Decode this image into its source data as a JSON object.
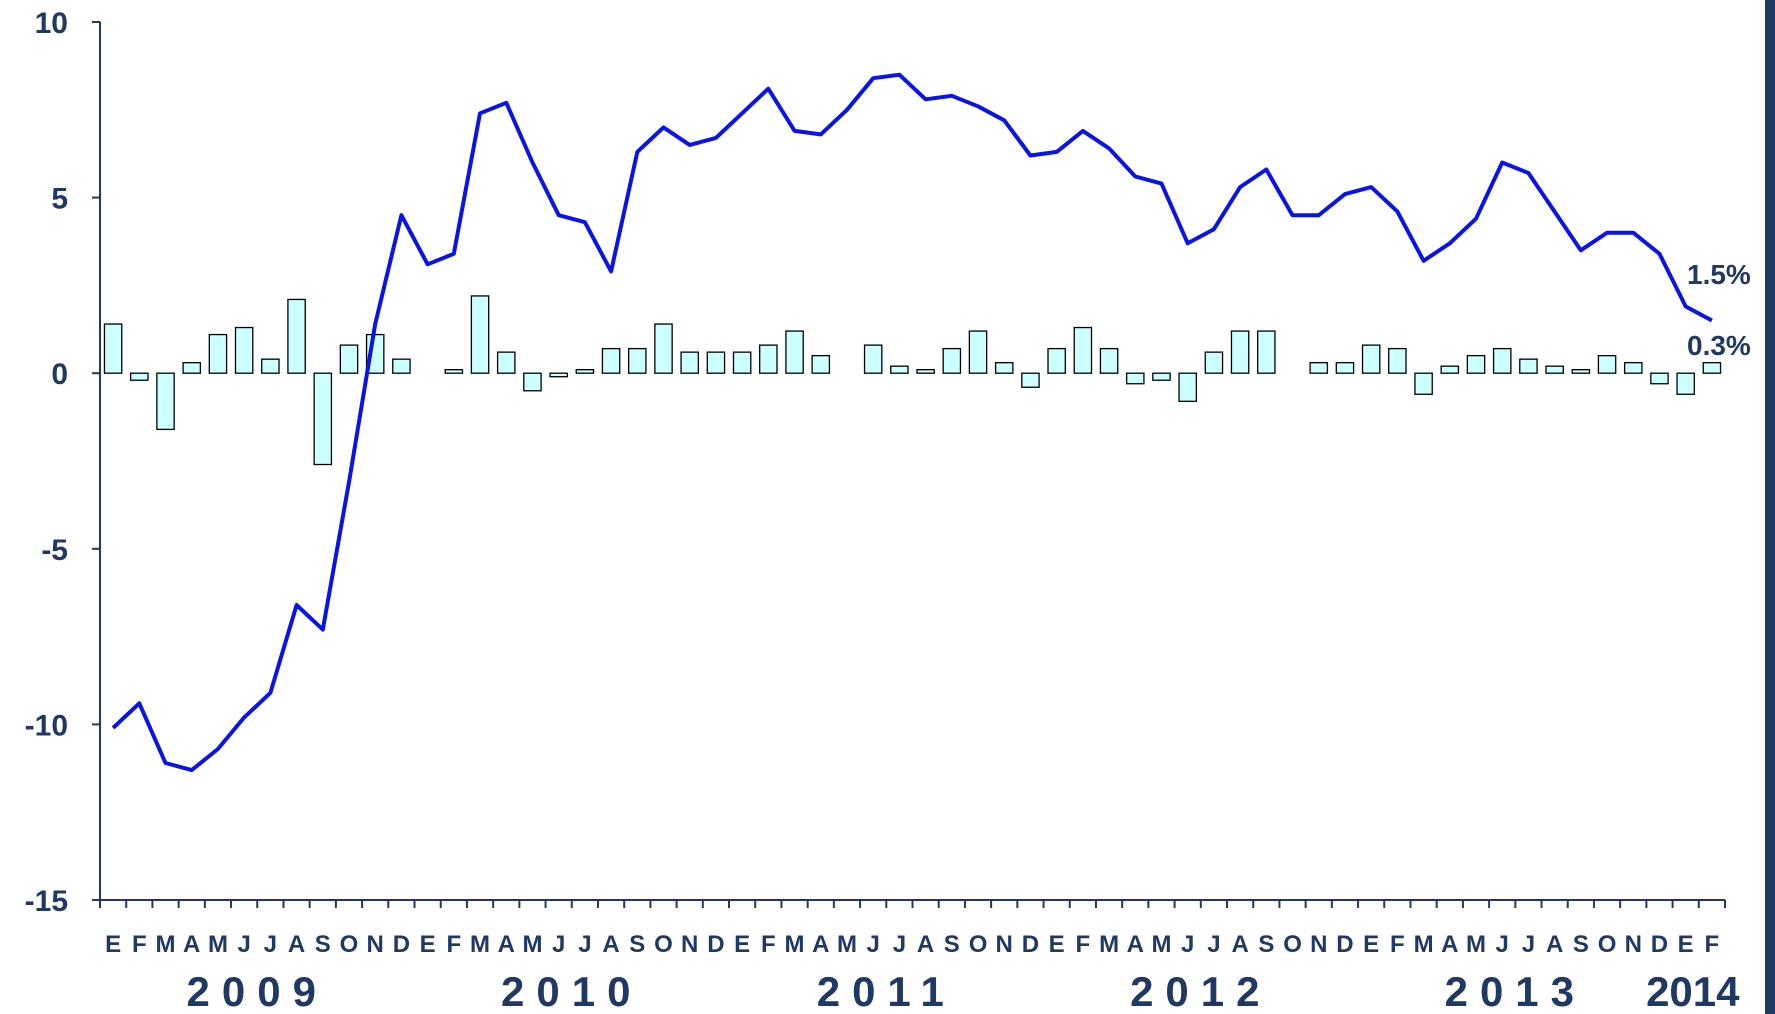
{
  "chart_data": {
    "type": "bar+line",
    "title": "",
    "xlabel": "",
    "ylabel": "",
    "ylim": [
      -15,
      10
    ],
    "yticks": [
      10,
      5,
      0,
      -5,
      -10,
      -15
    ],
    "grid": false,
    "categories": [
      "E",
      "F",
      "M",
      "A",
      "M",
      "J",
      "J",
      "A",
      "S",
      "O",
      "N",
      "D",
      "E",
      "F",
      "M",
      "A",
      "M",
      "J",
      "J",
      "A",
      "S",
      "O",
      "N",
      "D",
      "E",
      "F",
      "M",
      "A",
      "M",
      "J",
      "J",
      "A",
      "S",
      "O",
      "N",
      "D",
      "E",
      "F",
      "M",
      "A",
      "M",
      "J",
      "J",
      "A",
      "S",
      "O",
      "N",
      "D",
      "E",
      "F",
      "M",
      "A",
      "M",
      "J",
      "J",
      "A",
      "S",
      "O",
      "N",
      "D",
      "E",
      "F"
    ],
    "year_labels": [
      {
        "label": "2009",
        "start": 0,
        "end": 11
      },
      {
        "label": "2010",
        "start": 12,
        "end": 23
      },
      {
        "label": "2011",
        "start": 24,
        "end": 35
      },
      {
        "label": "2012",
        "start": 36,
        "end": 47
      },
      {
        "label": "2013",
        "start": 48,
        "end": 59
      },
      {
        "label": "2014",
        "start": 60,
        "end": 61
      }
    ],
    "series": [
      {
        "type": "bar",
        "color": "#ccffff",
        "values": [
          1.4,
          -0.2,
          -1.6,
          0.3,
          1.1,
          1.3,
          0.4,
          2.1,
          -2.6,
          0.8,
          1.1,
          0.4,
          0.0,
          0.1,
          2.2,
          0.6,
          -0.5,
          -0.1,
          0.1,
          0.7,
          0.7,
          1.4,
          0.6,
          0.6,
          0.6,
          0.8,
          1.2,
          0.5,
          0.0,
          0.8,
          0.2,
          0.1,
          0.7,
          1.2,
          0.3,
          -0.4,
          0.7,
          1.3,
          0.7,
          -0.3,
          -0.2,
          -0.8,
          0.6,
          1.2,
          1.2,
          0.0,
          0.3,
          0.3,
          0.8,
          0.7,
          -0.6,
          0.2,
          0.5,
          0.7,
          0.4,
          0.2,
          0.1,
          0.5,
          0.3,
          -0.3,
          -0.6,
          0.3
        ]
      },
      {
        "type": "line",
        "color": "#0a14e6",
        "values": [
          -10.1,
          -9.4,
          -11.1,
          -11.3,
          -10.7,
          -9.8,
          -9.1,
          -6.6,
          -7.3,
          -3.1,
          1.4,
          4.5,
          3.1,
          3.4,
          7.4,
          7.7,
          6.0,
          4.5,
          4.3,
          2.9,
          6.3,
          7.0,
          6.5,
          6.7,
          7.4,
          8.1,
          6.9,
          6.8,
          7.5,
          8.4,
          8.5,
          7.8,
          7.9,
          7.6,
          7.2,
          6.2,
          6.3,
          6.9,
          6.4,
          5.6,
          5.4,
          3.7,
          4.1,
          5.3,
          5.8,
          4.5,
          4.5,
          5.1,
          5.3,
          4.6,
          3.2,
          3.7,
          4.4,
          6.0,
          5.7,
          4.6,
          3.5,
          4.0,
          4.0,
          3.4,
          1.9,
          1.5
        ]
      }
    ],
    "annotations": {
      "line_last": "1.5%",
      "bar_last": "0.3%"
    }
  }
}
